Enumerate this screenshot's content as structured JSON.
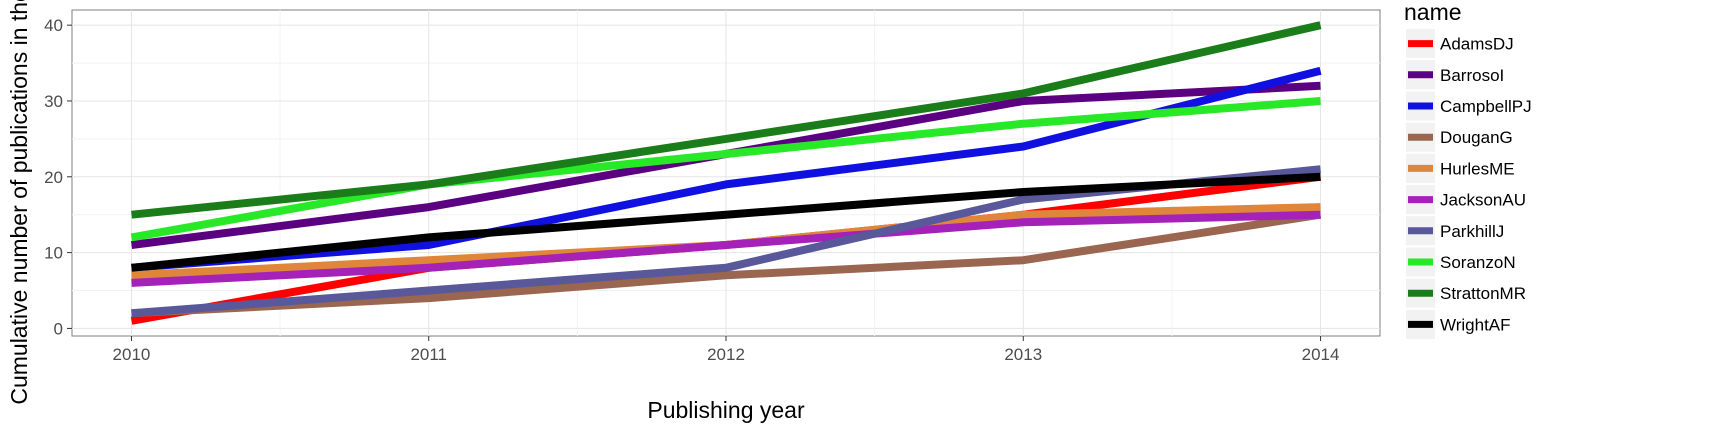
{
  "chart_data": {
    "type": "line",
    "xlabel": "Publishing year",
    "ylabel": "Cumulative number of publications in the \"Big",
    "x": [
      2010,
      2011,
      2012,
      2013,
      2014
    ],
    "xlim": [
      2009.8,
      2014.2
    ],
    "ylim": [
      -1,
      42
    ],
    "yticks": [
      0,
      10,
      20,
      30,
      40
    ],
    "grid": true,
    "legend_title": "name",
    "legend_position": "right",
    "series": [
      {
        "name": "AdamsDJ",
        "color": "#ff0000",
        "values": [
          1,
          8,
          11,
          15,
          20
        ]
      },
      {
        "name": "BarrosoI",
        "color": "#5a0080",
        "values": [
          11,
          16,
          23,
          30,
          32
        ]
      },
      {
        "name": "CampbellPJ",
        "color": "#1010e0",
        "values": [
          8,
          11,
          19,
          24,
          34
        ]
      },
      {
        "name": "DouganG",
        "color": "#9a6650",
        "values": [
          2,
          4,
          7,
          9,
          15
        ]
      },
      {
        "name": "HurlesME",
        "color": "#e0863a",
        "values": [
          7,
          9,
          11,
          15,
          16
        ]
      },
      {
        "name": "JacksonAU",
        "color": "#a422b8",
        "values": [
          6,
          8,
          11,
          14,
          15
        ]
      },
      {
        "name": "ParkhillJ",
        "color": "#58589a",
        "values": [
          2,
          5,
          8,
          17,
          21
        ]
      },
      {
        "name": "SoranzoN",
        "color": "#28e828",
        "values": [
          12,
          19,
          23,
          27,
          30
        ]
      },
      {
        "name": "StrattonMR",
        "color": "#1a7d1a",
        "values": [
          15,
          19,
          25,
          31,
          40
        ]
      },
      {
        "name": "WrightAF",
        "color": "#000000",
        "values": [
          8,
          12,
          15,
          18,
          20
        ]
      }
    ]
  }
}
